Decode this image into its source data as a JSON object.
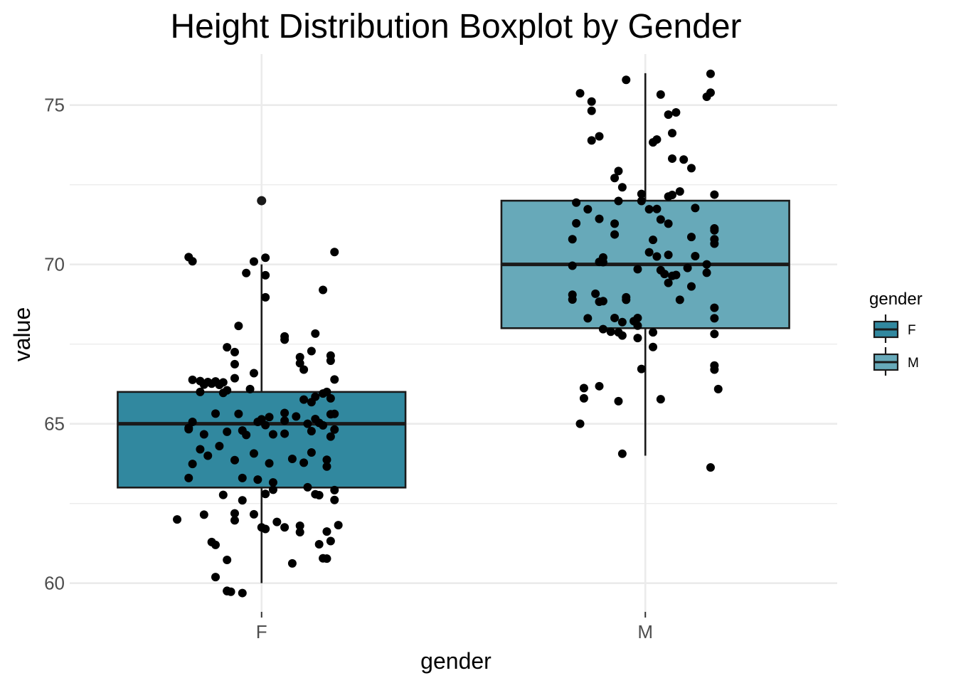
{
  "chart_data": {
    "type": "boxplot",
    "title": "Height Distribution Boxplot by Gender",
    "xlabel": "gender",
    "ylabel": "value",
    "categories": [
      "F",
      "M"
    ],
    "ylim": [
      59.1,
      76.6
    ],
    "y_ticks": [
      60,
      65,
      70,
      75
    ],
    "y_tick_labels": [
      "60",
      "65",
      "70",
      "75"
    ],
    "grid": true,
    "legend": {
      "title": "gender",
      "position": "right",
      "entries": [
        "F",
        "M"
      ]
    },
    "colors": {
      "F": "#31889f",
      "M": "#67a9b9",
      "grid": "#ebebeb",
      "points": "#000000",
      "lines": "#1a1a1a"
    },
    "boxes": [
      {
        "name": "F",
        "whisker_low": 60.0,
        "q1": 63.0,
        "median": 65.0,
        "q3": 66.0,
        "whisker_high": 70.0,
        "outliers": [
          72.0
        ]
      },
      {
        "name": "M",
        "whisker_low": 64.0,
        "q1": 68.0,
        "median": 70.0,
        "q3": 72.0,
        "whisker_high": 76.0,
        "outliers": []
      }
    ],
    "points": {
      "F": [
        [
          -0.19,
          70.23
        ],
        [
          -0.18,
          70.1
        ],
        [
          -0.04,
          69.73
        ],
        [
          -0.02,
          70.09
        ],
        [
          0.01,
          70.21
        ],
        [
          0.01,
          69.66
        ],
        [
          0.19,
          70.39
        ],
        [
          0.16,
          69.2
        ],
        [
          0.01,
          68.97
        ],
        [
          -0.06,
          68.07
        ],
        [
          0.06,
          67.74
        ],
        [
          0.06,
          67.64
        ],
        [
          0.14,
          67.83
        ],
        [
          0.18,
          67.14
        ],
        [
          0.13,
          67.28
        ],
        [
          0.18,
          66.98
        ],
        [
          -0.09,
          67.4
        ],
        [
          -0.07,
          67.25
        ],
        [
          -0.07,
          66.87
        ],
        [
          0.1,
          67.09
        ],
        [
          0.1,
          66.9
        ],
        [
          0.11,
          66.7
        ],
        [
          0.19,
          66.39
        ],
        [
          -0.18,
          66.38
        ],
        [
          -0.16,
          66.34
        ],
        [
          -0.15,
          66.23
        ],
        [
          -0.14,
          66.31
        ],
        [
          -0.13,
          66.26
        ],
        [
          -0.12,
          66.33
        ],
        [
          -0.11,
          66.22
        ],
        [
          -0.1,
          66.3
        ],
        [
          -0.07,
          66.43
        ],
        [
          -0.03,
          66.09
        ],
        [
          -0.02,
          66.59
        ],
        [
          -0.16,
          66.0
        ],
        [
          -0.1,
          65.97
        ],
        [
          -0.09,
          66.05
        ],
        [
          0.11,
          65.76
        ],
        [
          0.13,
          65.68
        ],
        [
          0.14,
          65.85
        ],
        [
          0.16,
          65.95
        ],
        [
          0.17,
          66.0
        ],
        [
          0.18,
          65.8
        ],
        [
          0.18,
          65.3
        ],
        [
          0.19,
          65.31
        ],
        [
          -0.19,
          64.87
        ],
        [
          -0.19,
          64.83
        ],
        [
          -0.18,
          65.06
        ],
        [
          -0.15,
          64.67
        ],
        [
          -0.12,
          65.32
        ],
        [
          -0.09,
          64.75
        ],
        [
          -0.06,
          65.31
        ],
        [
          -0.05,
          64.79
        ],
        [
          -0.04,
          64.65
        ],
        [
          -0.01,
          65.06
        ],
        [
          0.0,
          65.14
        ],
        [
          0.01,
          64.96
        ],
        [
          0.02,
          65.21
        ],
        [
          0.06,
          65.34
        ],
        [
          0.06,
          65.1
        ],
        [
          0.06,
          64.69
        ],
        [
          0.09,
          65.23
        ],
        [
          0.12,
          65.0
        ],
        [
          0.13,
          64.77
        ],
        [
          0.14,
          65.15
        ],
        [
          0.15,
          65.03
        ],
        [
          0.16,
          64.95
        ],
        [
          0.18,
          64.6
        ],
        [
          0.19,
          64.82
        ],
        [
          0.03,
          64.67
        ],
        [
          0.13,
          64.1
        ],
        [
          0.17,
          63.87
        ],
        [
          0.17,
          63.66
        ],
        [
          0.19,
          62.92
        ],
        [
          0.19,
          62.61
        ],
        [
          0.08,
          63.9
        ],
        [
          0.11,
          63.78
        ],
        [
          -0.18,
          63.74
        ],
        [
          -0.16,
          64.2
        ],
        [
          -0.14,
          64.0
        ],
        [
          -0.11,
          64.3
        ],
        [
          -0.07,
          63.86
        ],
        [
          -0.02,
          64.07
        ],
        [
          0.02,
          63.76
        ],
        [
          -0.19,
          63.3
        ],
        [
          -0.05,
          63.3
        ],
        [
          -0.01,
          63.25
        ],
        [
          0.03,
          63.16
        ],
        [
          0.03,
          62.93
        ],
        [
          0.01,
          62.8
        ],
        [
          0.12,
          63.01
        ],
        [
          0.14,
          62.79
        ],
        [
          0.15,
          62.76
        ],
        [
          -0.1,
          62.77
        ],
        [
          -0.05,
          62.6
        ],
        [
          -0.22,
          62.0
        ],
        [
          -0.15,
          62.15
        ],
        [
          -0.07,
          62.19
        ],
        [
          -0.07,
          61.97
        ],
        [
          -0.02,
          62.16
        ],
        [
          0.04,
          61.92
        ],
        [
          0.06,
          61.75
        ],
        [
          0.1,
          61.8
        ],
        [
          0.1,
          61.6
        ],
        [
          0.01,
          61.7
        ],
        [
          0.0,
          61.75
        ],
        [
          0.2,
          61.82
        ],
        [
          0.17,
          61.62
        ],
        [
          0.18,
          61.32
        ],
        [
          0.15,
          61.22
        ],
        [
          -0.13,
          61.29
        ],
        [
          -0.12,
          61.2
        ],
        [
          -0.09,
          60.73
        ],
        [
          0.08,
          60.62
        ],
        [
          0.16,
          60.78
        ],
        [
          0.17,
          60.77
        ],
        [
          -0.12,
          60.19
        ],
        [
          -0.09,
          59.76
        ],
        [
          -0.08,
          59.73
        ],
        [
          -0.05,
          59.69
        ],
        [
          -0.09,
          59.75
        ]
      ],
      "M": [
        [
          0.17,
          75.98
        ],
        [
          -0.05,
          75.79
        ],
        [
          0.04,
          75.33
        ],
        [
          0.17,
          75.39
        ],
        [
          0.16,
          75.26
        ],
        [
          -0.17,
          75.37
        ],
        [
          -0.14,
          75.11
        ],
        [
          -0.14,
          74.82
        ],
        [
          0.06,
          74.7
        ],
        [
          0.08,
          74.77
        ],
        [
          0.07,
          74.12
        ],
        [
          -0.14,
          73.89
        ],
        [
          -0.12,
          74.02
        ],
        [
          0.02,
          73.83
        ],
        [
          0.03,
          73.92
        ],
        [
          0.07,
          73.32
        ],
        [
          0.1,
          73.29
        ],
        [
          0.12,
          73.02
        ],
        [
          -0.07,
          72.93
        ],
        [
          -0.08,
          72.71
        ],
        [
          -0.06,
          72.42
        ],
        [
          -0.01,
          72.21
        ],
        [
          0.06,
          72.13
        ],
        [
          0.07,
          72.18
        ],
        [
          0.09,
          72.29
        ],
        [
          0.18,
          72.19
        ],
        [
          -0.18,
          71.94
        ],
        [
          -0.07,
          71.99
        ],
        [
          -0.01,
          71.99
        ],
        [
          0.01,
          71.73
        ],
        [
          0.03,
          71.74
        ],
        [
          0.13,
          71.77
        ],
        [
          -0.15,
          71.73
        ],
        [
          -0.12,
          71.43
        ],
        [
          -0.08,
          71.28
        ],
        [
          0.04,
          71.41
        ],
        [
          0.06,
          71.28
        ],
        [
          -0.18,
          71.29
        ],
        [
          0.18,
          71.07
        ],
        [
          0.18,
          71.13
        ],
        [
          -0.08,
          70.94
        ],
        [
          0.02,
          70.77
        ],
        [
          0.12,
          70.86
        ],
        [
          0.18,
          70.79
        ],
        [
          -0.19,
          70.79
        ],
        [
          -0.11,
          70.22
        ],
        [
          -0.12,
          70.08
        ],
        [
          -0.11,
          70.07
        ],
        [
          0.01,
          70.38
        ],
        [
          0.03,
          70.25
        ],
        [
          0.06,
          70.3
        ],
        [
          0.13,
          70.26
        ],
        [
          0.16,
          70.0
        ],
        [
          0.18,
          70.65
        ],
        [
          -0.19,
          69.96
        ],
        [
          -0.02,
          69.85
        ],
        [
          0.04,
          69.82
        ],
        [
          0.05,
          69.7
        ],
        [
          0.07,
          69.64
        ],
        [
          0.08,
          69.67
        ],
        [
          0.11,
          69.89
        ],
        [
          0.16,
          69.74
        ],
        [
          -0.19,
          69.05
        ],
        [
          -0.19,
          68.9
        ],
        [
          -0.13,
          69.08
        ],
        [
          -0.12,
          68.83
        ],
        [
          -0.11,
          68.85
        ],
        [
          -0.05,
          68.89
        ],
        [
          -0.05,
          68.97
        ],
        [
          0.06,
          69.42
        ],
        [
          0.09,
          68.89
        ],
        [
          0.12,
          69.31
        ],
        [
          0.18,
          68.64
        ],
        [
          0.18,
          68.31
        ],
        [
          -0.15,
          68.31
        ],
        [
          -0.08,
          68.32
        ],
        [
          -0.06,
          68.19
        ],
        [
          -0.03,
          68.22
        ],
        [
          -0.02,
          68.32
        ],
        [
          -0.02,
          68.08
        ],
        [
          -0.11,
          67.97
        ],
        [
          -0.09,
          67.89
        ],
        [
          -0.07,
          67.87
        ],
        [
          -0.06,
          67.77
        ],
        [
          -0.02,
          67.69
        ],
        [
          0.02,
          67.87
        ],
        [
          0.02,
          67.41
        ],
        [
          0.18,
          67.82
        ],
        [
          -0.01,
          66.72
        ],
        [
          0.18,
          66.83
        ],
        [
          0.18,
          66.7
        ],
        [
          0.19,
          66.09
        ],
        [
          -0.16,
          66.12
        ],
        [
          -0.12,
          66.18
        ],
        [
          -0.07,
          65.71
        ],
        [
          0.04,
          65.77
        ],
        [
          -0.16,
          65.8
        ],
        [
          -0.17,
          65.0
        ],
        [
          -0.06,
          64.06
        ],
        [
          0.17,
          63.63
        ]
      ]
    }
  }
}
